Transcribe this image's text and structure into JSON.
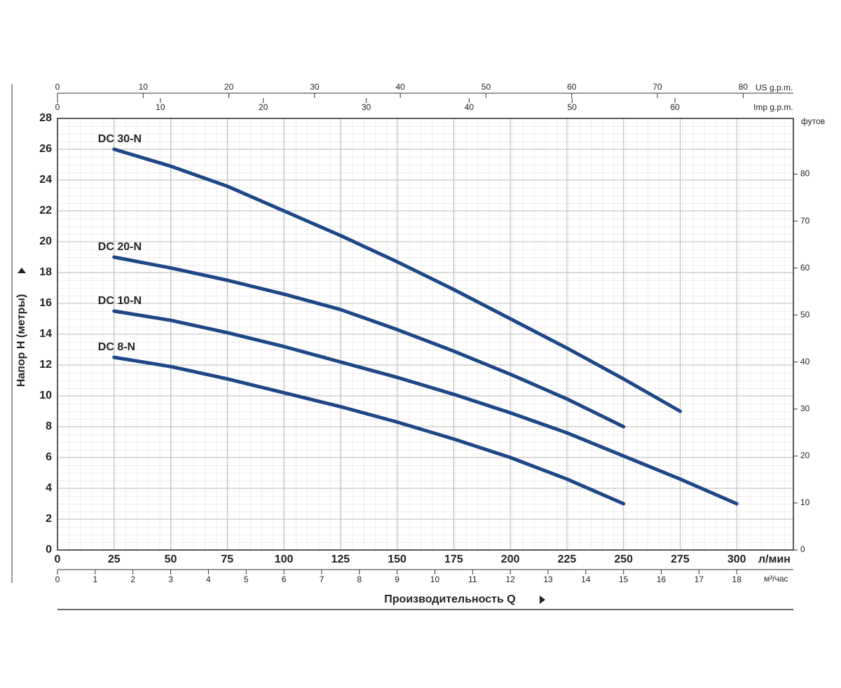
{
  "chart_data": {
    "type": "line",
    "xlabel": "Производительность Q",
    "xunit": "л/мин",
    "ylabel": "Напор H (метры)",
    "y2label": "футов",
    "x": [
      25,
      50,
      75,
      100,
      125,
      150,
      175,
      200,
      225,
      250,
      275,
      300
    ],
    "xlim": [
      0,
      325
    ],
    "xticks": [
      0,
      25,
      50,
      75,
      100,
      125,
      150,
      175,
      200,
      225,
      250,
      275,
      300
    ],
    "ylim": [
      0,
      28
    ],
    "yticks": [
      0,
      2,
      4,
      6,
      8,
      10,
      12,
      14,
      16,
      18,
      20,
      22,
      24,
      26,
      28
    ],
    "y2lim": [
      0,
      91.86
    ],
    "y2ticks": [
      0,
      10,
      20,
      30,
      40,
      50,
      60,
      70,
      80
    ],
    "x2label": "US g.p.m.",
    "x2lim": [
      0,
      85.86
    ],
    "x2ticks": [
      0,
      10,
      20,
      30,
      40,
      50,
      60,
      70,
      80
    ],
    "x3label": "Imp g.p.m.",
    "x3lim": [
      0,
      71.5
    ],
    "x3ticks": [
      0,
      10,
      20,
      30,
      40,
      50,
      60
    ],
    "x4label": "м³/час",
    "x4lim": [
      0,
      19.5
    ],
    "x4ticks": [
      0,
      1,
      2,
      3,
      4,
      5,
      6,
      7,
      8,
      9,
      10,
      11,
      12,
      13,
      14,
      15,
      16,
      17,
      18
    ],
    "grid": true,
    "series": [
      {
        "name": "DC 30-N",
        "color": "#1d4785",
        "values": [
          26,
          24.9,
          23.6,
          22.0,
          20.4,
          18.7,
          16.9,
          15.0,
          13.1,
          11.1,
          9,
          null
        ]
      },
      {
        "name": "DC 20-N",
        "color": "#1d4785",
        "values": [
          19,
          18.3,
          17.5,
          16.6,
          15.6,
          14.3,
          12.9,
          11.4,
          9.8,
          8,
          null,
          null
        ]
      },
      {
        "name": "DC 10-N",
        "color": "#1d4785",
        "values": [
          15.5,
          14.9,
          14.1,
          13.2,
          12.2,
          11.2,
          10.1,
          8.9,
          7.6,
          6.1,
          4.6,
          3
        ]
      },
      {
        "name": "DC 8-N",
        "color": "#1d4785",
        "values": [
          12.5,
          11.9,
          11.1,
          10.2,
          9.3,
          8.3,
          7.2,
          6.0,
          4.6,
          3,
          null,
          null
        ]
      }
    ]
  }
}
